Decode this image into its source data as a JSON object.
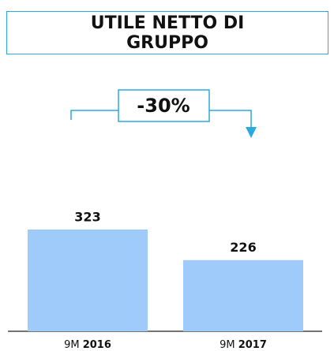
{
  "chart_data": {
    "type": "bar",
    "title": "UTILE NETTO DI GRUPPO",
    "annotation": "-30%",
    "categories": [
      "9M 2016",
      "9M 2017"
    ],
    "values": [
      323,
      226
    ],
    "color": "#9fcbfa"
  }
}
